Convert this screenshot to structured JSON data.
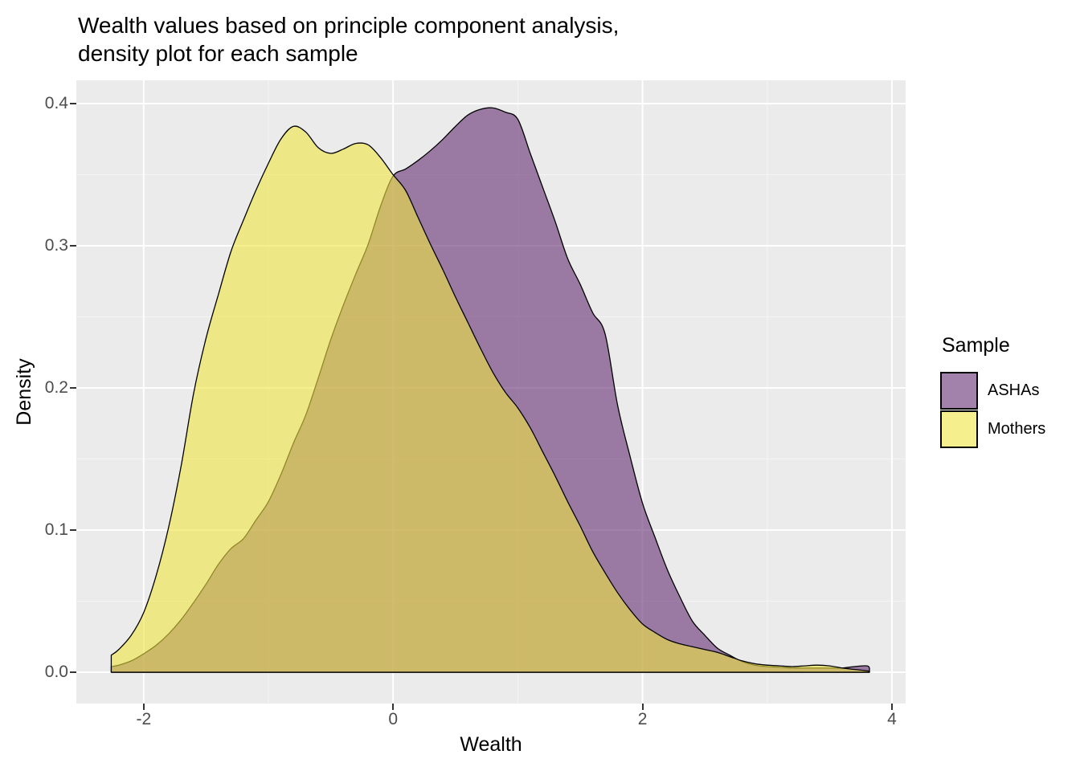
{
  "title": "Wealth values based on principle component analysis,\ndensity plot for each sample",
  "panel_colors": {
    "background": "#EBEBEB",
    "grid_major": "#FFFFFF",
    "grid_minor": "#F5F5F5",
    "tick_color": "#333333",
    "tick_label_color": "#4D4D4D"
  },
  "legend": {
    "title": "Sample",
    "entries": [
      {
        "label": "ASHAs",
        "fill": "#642F71",
        "alpha": 0.6,
        "outline": "#000000"
      },
      {
        "label": "Mothers",
        "fill": "#F0E442",
        "alpha": 0.6,
        "outline": "#000000"
      }
    ]
  },
  "chart_data": {
    "type": "area",
    "subtype": "density",
    "title": "Wealth values based on principle component analysis, density plot for each sample",
    "xlabel": "Wealth",
    "ylabel": "Density",
    "xlim": [
      -2.54,
      4.11
    ],
    "ylim": [
      -0.022,
      0.4164
    ],
    "grid": "on",
    "legend_position": "right",
    "legend_title": "Sample",
    "x_ticks": [
      {
        "value": -2,
        "label": "-2"
      },
      {
        "value": 0,
        "label": "0"
      },
      {
        "value": 2,
        "label": "2"
      },
      {
        "value": 4,
        "label": "4"
      }
    ],
    "y_ticks": [
      {
        "value": 0.0,
        "label": "0.0"
      },
      {
        "value": 0.1,
        "label": "0.1"
      },
      {
        "value": 0.2,
        "label": "0.2"
      },
      {
        "value": 0.3,
        "label": "0.3"
      },
      {
        "value": 0.4,
        "label": "0.4"
      }
    ],
    "x_minor_gridlines": [
      -1,
      1,
      3
    ],
    "y_minor_gridlines": [
      0.05,
      0.15,
      0.25,
      0.35
    ],
    "x": [
      -2.26,
      -2.2,
      -2.1,
      -2.0,
      -1.9,
      -1.8,
      -1.7,
      -1.6,
      -1.5,
      -1.4,
      -1.3,
      -1.2,
      -1.1,
      -1.0,
      -0.9,
      -0.8,
      -0.7,
      -0.6,
      -0.5,
      -0.4,
      -0.3,
      -0.2,
      -0.1,
      0.0,
      0.1,
      0.2,
      0.3,
      0.4,
      0.5,
      0.6,
      0.7,
      0.8,
      0.9,
      1.0,
      1.1,
      1.2,
      1.3,
      1.4,
      1.5,
      1.6,
      1.7,
      1.8,
      1.9,
      2.0,
      2.1,
      2.2,
      2.3,
      2.4,
      2.5,
      2.6,
      2.7,
      2.8,
      2.9,
      3.0,
      3.1,
      3.2,
      3.3,
      3.4,
      3.5,
      3.6,
      3.7,
      3.8,
      3.82
    ],
    "series": [
      {
        "name": "ASHAs",
        "fill": "#642F71",
        "fill_alpha": 0.6,
        "outline": "#000000",
        "values": [
          0.004,
          0.005,
          0.008,
          0.013,
          0.019,
          0.027,
          0.037,
          0.049,
          0.062,
          0.076,
          0.087,
          0.094,
          0.107,
          0.12,
          0.139,
          0.161,
          0.181,
          0.207,
          0.234,
          0.258,
          0.28,
          0.301,
          0.328,
          0.349,
          0.354,
          0.36,
          0.367,
          0.375,
          0.384,
          0.392,
          0.396,
          0.397,
          0.394,
          0.389,
          0.365,
          0.341,
          0.317,
          0.291,
          0.273,
          0.253,
          0.238,
          0.188,
          0.152,
          0.119,
          0.095,
          0.072,
          0.053,
          0.036,
          0.026,
          0.017,
          0.012,
          0.0075,
          0.005,
          0.004,
          0.0035,
          0.003,
          0.003,
          0.003,
          0.003,
          0.003,
          0.004,
          0.0045,
          0.003
        ]
      },
      {
        "name": "Mothers",
        "fill": "#F0E442",
        "fill_alpha": 0.6,
        "outline": "#000000",
        "values": [
          0.012,
          0.016,
          0.026,
          0.042,
          0.068,
          0.102,
          0.145,
          0.196,
          0.235,
          0.266,
          0.296,
          0.318,
          0.339,
          0.358,
          0.375,
          0.384,
          0.38,
          0.369,
          0.365,
          0.368,
          0.372,
          0.371,
          0.362,
          0.35,
          0.339,
          0.32,
          0.301,
          0.283,
          0.264,
          0.246,
          0.228,
          0.211,
          0.197,
          0.186,
          0.172,
          0.155,
          0.138,
          0.12,
          0.103,
          0.085,
          0.07,
          0.056,
          0.044,
          0.034,
          0.028,
          0.023,
          0.02,
          0.018,
          0.016,
          0.014,
          0.011,
          0.008,
          0.006,
          0.005,
          0.0045,
          0.004,
          0.0045,
          0.005,
          0.0045,
          0.003,
          0.002,
          0.001,
          0.0005
        ]
      }
    ]
  }
}
